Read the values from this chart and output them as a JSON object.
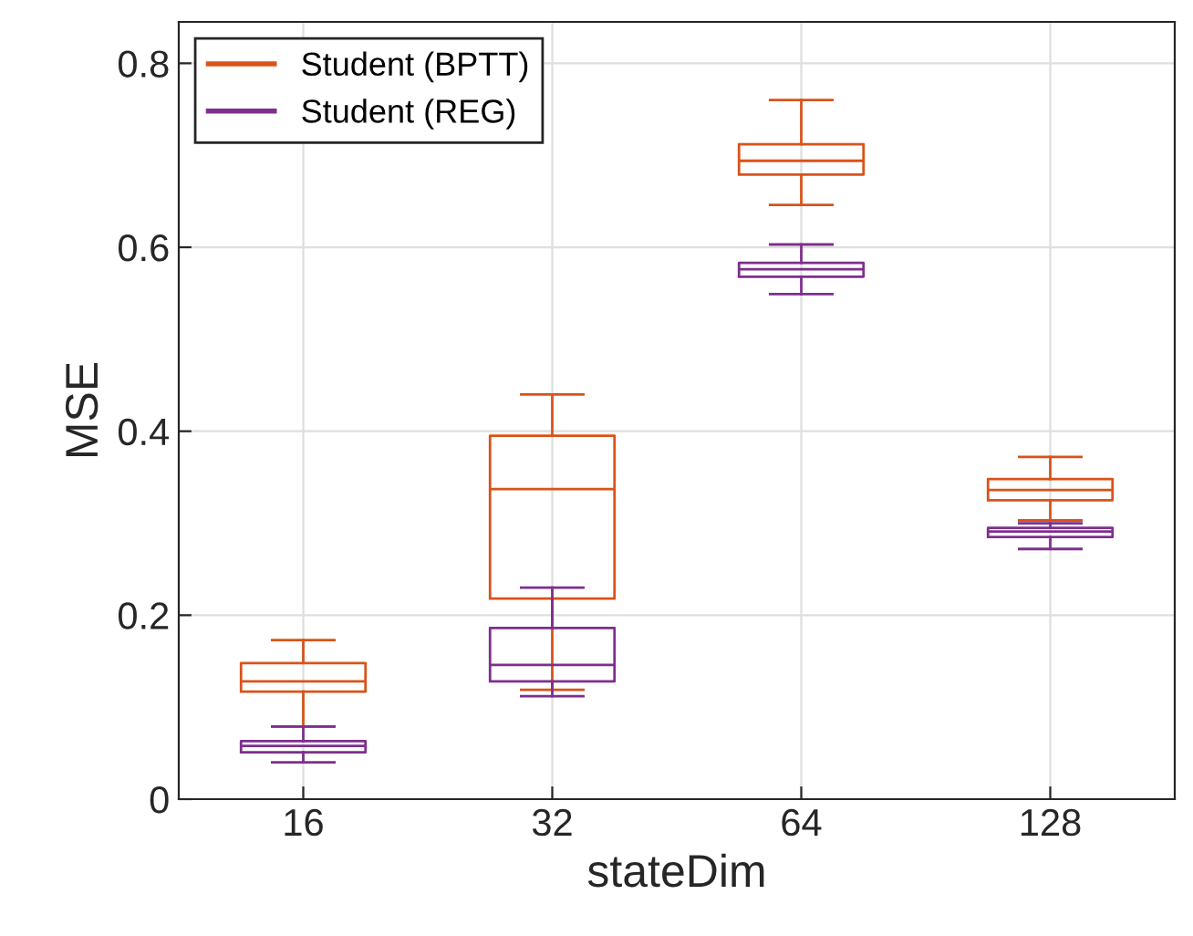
{
  "chart_data": {
    "type": "box",
    "xlabel": "stateDim",
    "ylabel": "MSE",
    "categories": [
      "16",
      "32",
      "64",
      "128"
    ],
    "ylim": [
      0,
      0.845
    ],
    "yticks": [
      {
        "value": 0,
        "label": "0"
      },
      {
        "value": 0.2,
        "label": "0.2"
      },
      {
        "value": 0.4,
        "label": "0.4"
      },
      {
        "value": 0.6,
        "label": "0.6"
      },
      {
        "value": 0.8,
        "label": "0.8"
      }
    ],
    "grid": true,
    "legend": "top left",
    "series": [
      {
        "name": "Student (BPTT)",
        "color": "#d95319",
        "boxes": [
          {
            "low": 0.079,
            "q1": 0.117,
            "median": 0.128,
            "q3": 0.148,
            "high": 0.173
          },
          {
            "low": 0.119,
            "q1": 0.218,
            "median": 0.337,
            "q3": 0.395,
            "high": 0.44
          },
          {
            "low": 0.646,
            "q1": 0.679,
            "median": 0.694,
            "q3": 0.712,
            "high": 0.76
          },
          {
            "low": 0.303,
            "q1": 0.325,
            "median": 0.336,
            "q3": 0.348,
            "high": 0.372
          }
        ]
      },
      {
        "name": "Student (REG)",
        "color": "#7e2f8e",
        "boxes": [
          {
            "low": 0.04,
            "q1": 0.051,
            "median": 0.058,
            "q3": 0.063,
            "high": 0.079
          },
          {
            "low": 0.112,
            "q1": 0.128,
            "median": 0.146,
            "q3": 0.186,
            "high": 0.23
          },
          {
            "low": 0.549,
            "q1": 0.568,
            "median": 0.576,
            "q3": 0.583,
            "high": 0.603
          },
          {
            "low": 0.272,
            "q1": 0.285,
            "median": 0.291,
            "q3": 0.295,
            "high": 0.3
          }
        ]
      }
    ]
  }
}
